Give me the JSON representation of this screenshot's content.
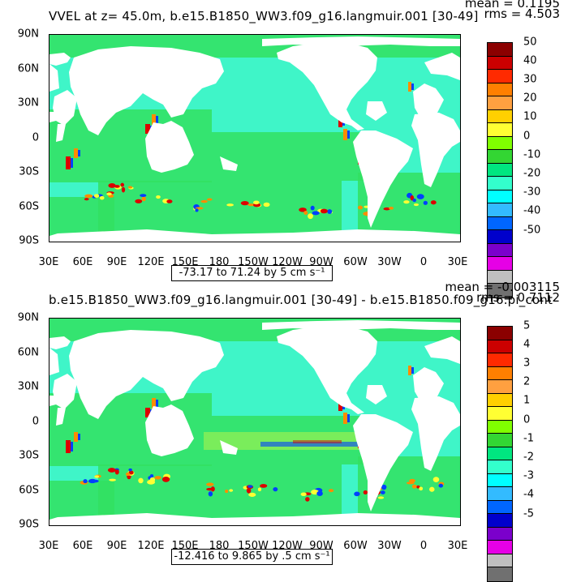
{
  "panels": [
    {
      "title": "VVEL at z=  45.0m, b.e15.B1850_WW3.f09_g16.langmuir.001 [30-49]",
      "mean": "mean = 0.1195",
      "rms": "rms = 4.503",
      "range_label": "-73.17 to 71.24 by 5 cm s⁻¹",
      "colorbar_labels": [
        "50",
        "40",
        "30",
        "20",
        "10",
        "0",
        "-10",
        "-20",
        "-30",
        "-40",
        "-50"
      ]
    },
    {
      "title": "b.e15.B1850_WW3.f09_g16.langmuir.001 [30-49] - b.e15.B1850.f09_g16.pi_cont",
      "mean": "mean = -0.003115",
      "rms": "rms = 0.7112",
      "range_label": "-12.416 to 9.865 by .5 cm s⁻¹",
      "colorbar_labels": [
        "5",
        "4",
        "3",
        "2",
        "1",
        "0",
        "-1",
        "-2",
        "-3",
        "-4",
        "-5"
      ]
    }
  ],
  "lat_labels": [
    "90N",
    "60N",
    "30N",
    "0",
    "30S",
    "60S",
    "90S"
  ],
  "lon_labels": [
    "30E",
    "60E",
    "90E",
    "120E",
    "150E",
    "180",
    "150W",
    "120W",
    "90W",
    "60W",
    "30W",
    "0",
    "30E"
  ],
  "colorbar_colors": [
    "#8b0000",
    "#cc0000",
    "#ff2a00",
    "#ff7f00",
    "#ffa040",
    "#ffd000",
    "#ffff33",
    "#80ff00",
    "#33d633",
    "#00e680",
    "#33ffcc",
    "#00ffff",
    "#33bbff",
    "#0066ff",
    "#0000cc",
    "#7b00cc",
    "#e600e6",
    "#bfbfbf",
    "#707070"
  ],
  "map_colors": {
    "ocean_base": "#3ff5c8",
    "ocean_zone": "#33e060",
    "land": "#ffffff",
    "hot": "#ff8c00",
    "red": "#dd0000",
    "cold": "#0040ff",
    "yellow": "#ffff33"
  }
}
